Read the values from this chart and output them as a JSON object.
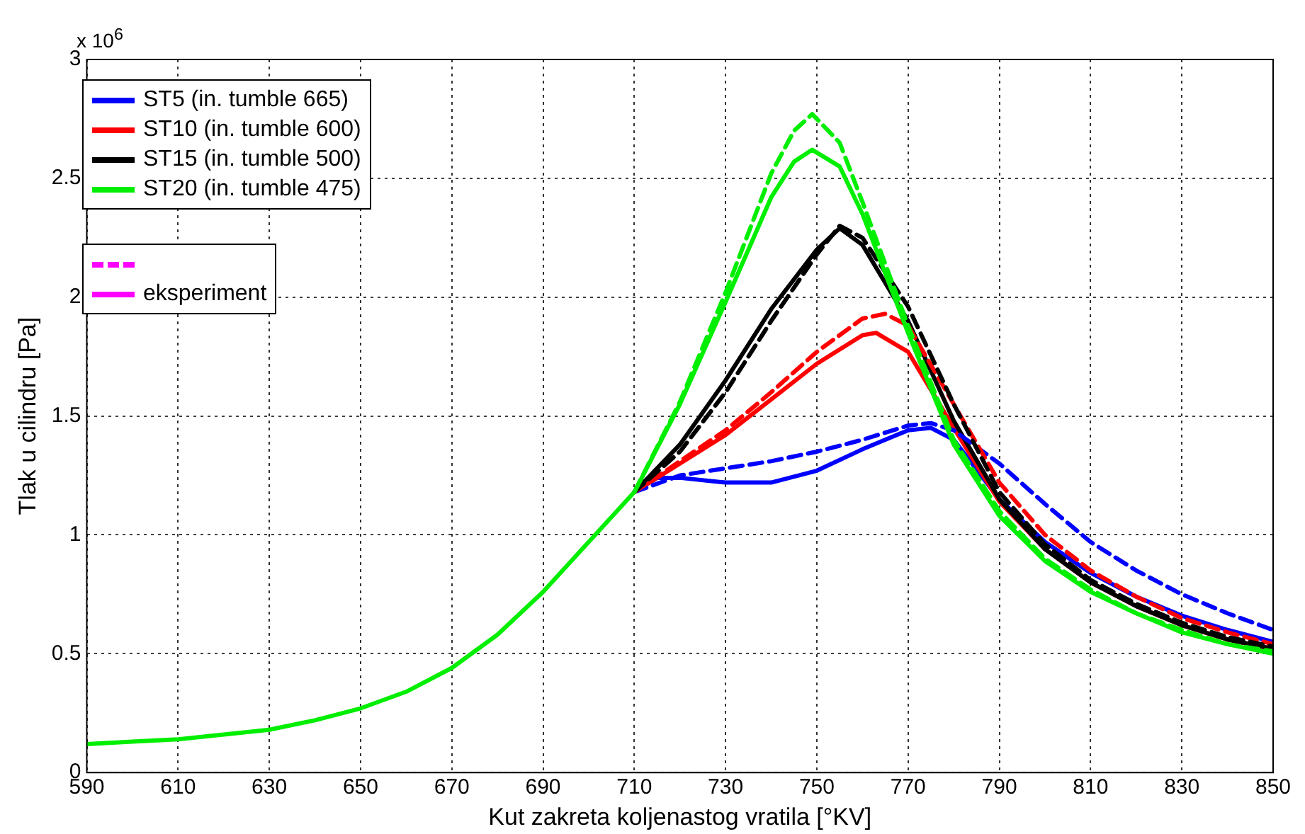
{
  "chart_data": {
    "type": "line",
    "xlabel": "Kut zakreta koljenastog vratila [°KV]",
    "ylabel": "Tlak u cilindru [Pa]",
    "annotations": [
      "x 10$^{6}$",
      "eksperiment"
    ],
    "xlim": [
      590,
      850
    ],
    "xticks": [
      590,
      610,
      630,
      650,
      670,
      690,
      710,
      730,
      750,
      770,
      790,
      810,
      830,
      850
    ],
    "ylim": [
      0,
      3
    ],
    "yticks": [
      0,
      0.5,
      1,
      1.5,
      2,
      2.5,
      3
    ],
    "grid": true,
    "legend": "top left",
    "marker": "none",
    "series": [
      {
        "name": "ST5 (in. tumble 665)",
        "color": "#0000ff",
        "line_style": "solid",
        "x": [
          710,
          715,
          720,
          730,
          740,
          750,
          760,
          770,
          775,
          780,
          790,
          800,
          810,
          820,
          830,
          840,
          850
        ],
        "values": [
          1.18,
          1.24,
          1.24,
          1.22,
          1.22,
          1.27,
          1.36,
          1.44,
          1.45,
          1.4,
          1.15,
          0.97,
          0.84,
          0.74,
          0.66,
          0.6,
          0.55
        ]
      },
      {
        "name": "ST10 (in. tumble 600)",
        "color": "#ff0000",
        "line_style": "solid",
        "x": [
          710,
          720,
          730,
          740,
          750,
          760,
          763,
          770,
          780,
          790,
          800,
          810,
          820,
          830,
          840,
          850
        ],
        "values": [
          1.18,
          1.3,
          1.42,
          1.57,
          1.72,
          1.84,
          1.85,
          1.77,
          1.45,
          1.14,
          0.94,
          0.8,
          0.7,
          0.62,
          0.56,
          0.52
        ]
      },
      {
        "name": "ST15 (in. tumble 500)",
        "color": "#000000",
        "line_style": "solid",
        "x": [
          710,
          720,
          730,
          740,
          750,
          755,
          760,
          770,
          780,
          790,
          800,
          810,
          820,
          830,
          840,
          850
        ],
        "values": [
          1.18,
          1.38,
          1.65,
          1.95,
          2.2,
          2.29,
          2.22,
          1.9,
          1.48,
          1.15,
          0.94,
          0.8,
          0.7,
          0.62,
          0.56,
          0.52
        ]
      },
      {
        "name": "ST20 (in. tumble 475)",
        "color": "#00ee00",
        "line_style": "solid",
        "x": [
          590,
          600,
          610,
          620,
          630,
          640,
          650,
          660,
          670,
          680,
          690,
          700,
          710,
          720,
          730,
          740,
          745,
          749,
          755,
          760,
          770,
          780,
          790,
          800,
          810,
          820,
          830,
          840,
          850
        ],
        "values": [
          0.12,
          0.13,
          0.14,
          0.16,
          0.18,
          0.22,
          0.27,
          0.34,
          0.44,
          0.58,
          0.76,
          0.97,
          1.18,
          1.55,
          1.98,
          2.42,
          2.57,
          2.62,
          2.55,
          2.35,
          1.85,
          1.38,
          1.08,
          0.89,
          0.76,
          0.67,
          0.59,
          0.54,
          0.5
        ]
      },
      {
        "color": "#0000ff",
        "line_style": "dashed",
        "x": [
          710,
          720,
          730,
          740,
          750,
          760,
          770,
          775,
          780,
          790,
          800,
          810,
          820,
          830,
          840,
          850
        ],
        "values": [
          1.18,
          1.25,
          1.28,
          1.31,
          1.35,
          1.4,
          1.46,
          1.47,
          1.44,
          1.3,
          1.13,
          0.97,
          0.85,
          0.75,
          0.67,
          0.6
        ]
      },
      {
        "color": "#ff0000",
        "line_style": "dashed",
        "x": [
          710,
          720,
          730,
          740,
          750,
          760,
          765,
          770,
          780,
          790,
          800,
          810,
          820,
          830,
          840,
          850
        ],
        "values": [
          1.18,
          1.31,
          1.44,
          1.6,
          1.77,
          1.91,
          1.93,
          1.88,
          1.55,
          1.22,
          1.0,
          0.85,
          0.74,
          0.65,
          0.59,
          0.54
        ]
      },
      {
        "color": "#000000",
        "line_style": "dashed",
        "x": [
          710,
          720,
          730,
          740,
          750,
          755,
          760,
          770,
          780,
          790,
          800,
          810,
          820,
          830,
          840,
          850
        ],
        "values": [
          1.18,
          1.35,
          1.6,
          1.9,
          2.18,
          2.3,
          2.25,
          1.96,
          1.55,
          1.18,
          0.96,
          0.81,
          0.71,
          0.63,
          0.57,
          0.53
        ]
      },
      {
        "color": "#00ee00",
        "line_style": "dashed",
        "x": [
          710,
          720,
          730,
          740,
          745,
          749,
          755,
          760,
          770,
          780,
          790,
          800,
          810,
          820,
          830,
          840,
          850
        ],
        "values": [
          1.18,
          1.56,
          2.02,
          2.52,
          2.7,
          2.77,
          2.65,
          2.4,
          1.88,
          1.4,
          1.1,
          0.9,
          0.77,
          0.67,
          0.6,
          0.54,
          0.51
        ]
      }
    ]
  }
}
